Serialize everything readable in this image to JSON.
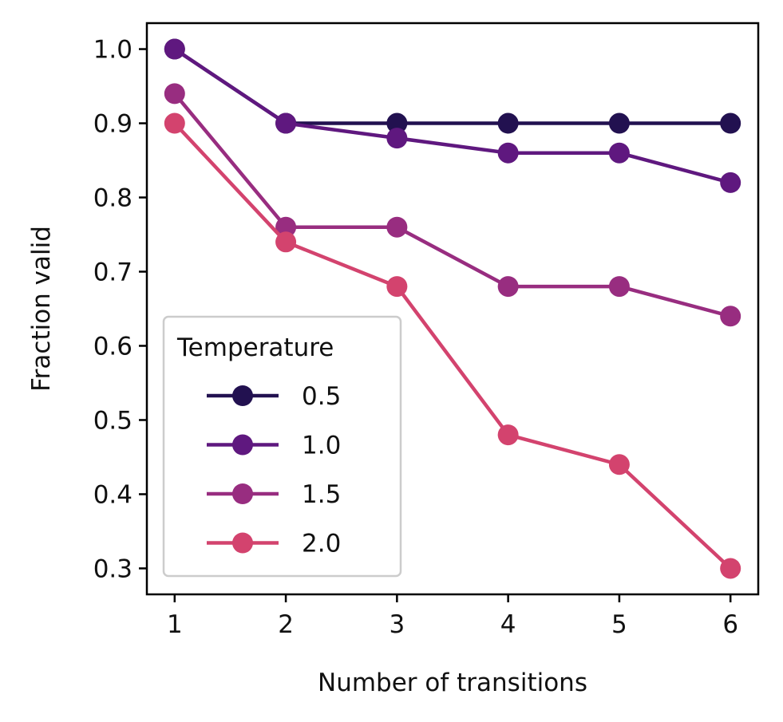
{
  "chart_data": {
    "type": "line",
    "xlabel": "Number of transitions",
    "ylabel": "Fraction valid",
    "x": [
      1,
      2,
      3,
      4,
      5,
      6
    ],
    "xticks": [
      "1",
      "2",
      "3",
      "4",
      "5",
      "6"
    ],
    "yticks": [
      "0.3",
      "0.4",
      "0.5",
      "0.6",
      "0.7",
      "0.8",
      "0.9",
      "1.0"
    ],
    "xlim": [
      0.75,
      6.25
    ],
    "ylim": [
      0.265,
      1.035
    ],
    "grid": false,
    "legend": {
      "title": "Temperature",
      "placement": "lower-left"
    },
    "series": [
      {
        "name": "0.5",
        "color": "#221150",
        "values": [
          1.0,
          0.9,
          0.9,
          0.9,
          0.9,
          0.9
        ]
      },
      {
        "name": "1.0",
        "color": "#5f187f",
        "values": [
          1.0,
          0.9,
          0.88,
          0.86,
          0.86,
          0.82
        ]
      },
      {
        "name": "1.5",
        "color": "#982d80",
        "values": [
          0.94,
          0.76,
          0.76,
          0.68,
          0.68,
          0.64
        ]
      },
      {
        "name": "2.0",
        "color": "#d3436e",
        "values": [
          0.9,
          0.74,
          0.68,
          0.48,
          0.44,
          0.3
        ]
      }
    ]
  }
}
